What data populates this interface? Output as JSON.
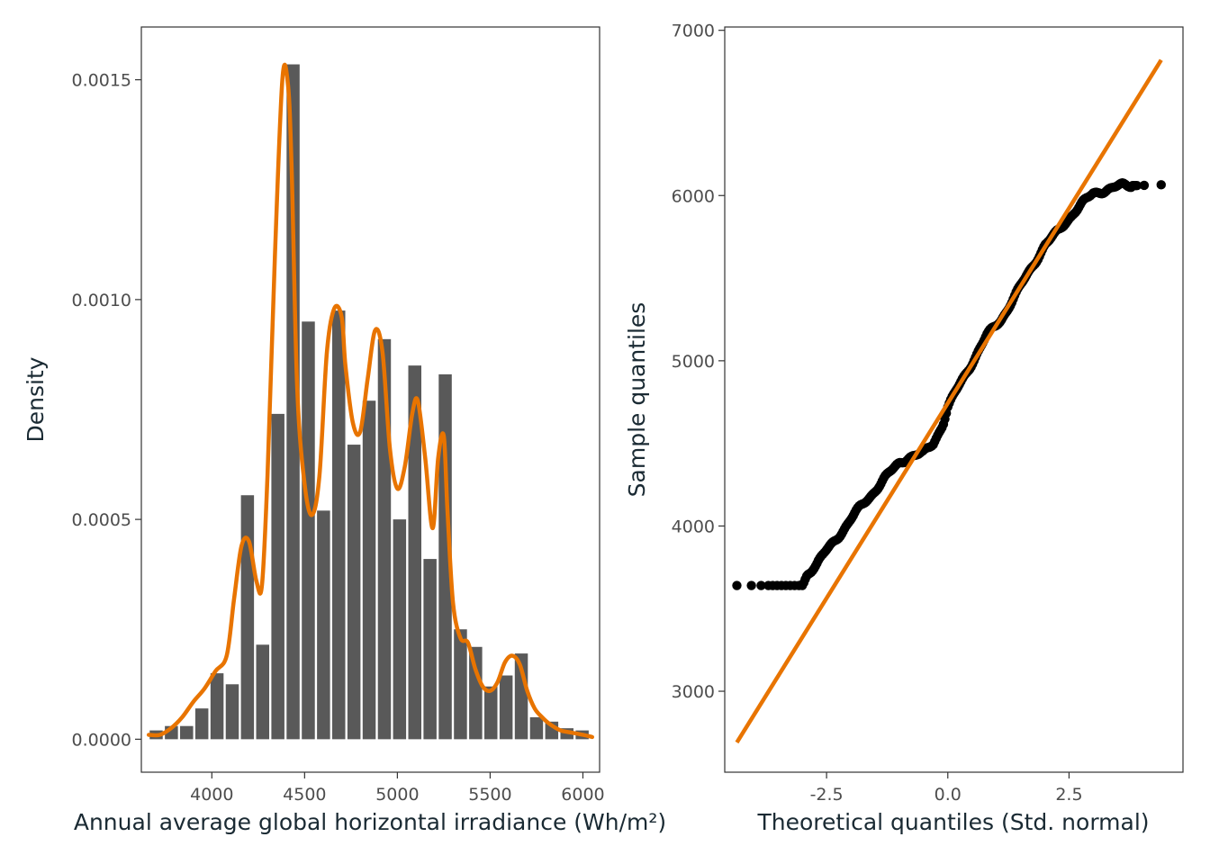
{
  "chart_data": [
    {
      "type": "bar",
      "subtype": "histogram-with-density",
      "title": "",
      "xlabel": "Annual average global horizontal irradiance (Wh/m²)",
      "ylabel": "Density",
      "xlim": [
        3620,
        6090
      ],
      "ylim": [
        -7.5e-05,
        0.00162
      ],
      "xticks": [
        4000,
        4500,
        5000,
        5500,
        6000
      ],
      "xtick_labels": [
        "4000",
        "4500",
        "5000",
        "5500",
        "6000"
      ],
      "yticks": [
        0,
        0.0005,
        0.001,
        0.0015
      ],
      "ytick_labels": [
        "0.0000",
        "0.0005",
        "0.0010",
        "0.0015"
      ],
      "grid": false,
      "bar_color": "#595959",
      "density_color": "#E87400",
      "bin_width": 82,
      "bins": [
        {
          "x0": 3659,
          "x1": 3741,
          "value": 2e-05
        },
        {
          "x0": 3741,
          "x1": 3823,
          "value": 3e-05
        },
        {
          "x0": 3823,
          "x1": 3905,
          "value": 3e-05
        },
        {
          "x0": 3905,
          "x1": 3987,
          "value": 7e-05
        },
        {
          "x0": 3987,
          "x1": 4069,
          "value": 0.00015
        },
        {
          "x0": 4069,
          "x1": 4151,
          "value": 0.000125
        },
        {
          "x0": 4151,
          "x1": 4233,
          "value": 0.000555
        },
        {
          "x0": 4233,
          "x1": 4315,
          "value": 0.000215
        },
        {
          "x0": 4315,
          "x1": 4397,
          "value": 0.00074
        },
        {
          "x0": 4397,
          "x1": 4479,
          "value": 0.001535
        },
        {
          "x0": 4479,
          "x1": 4561,
          "value": 0.00095
        },
        {
          "x0": 4561,
          "x1": 4643,
          "value": 0.00052
        },
        {
          "x0": 4643,
          "x1": 4725,
          "value": 0.000975
        },
        {
          "x0": 4725,
          "x1": 4807,
          "value": 0.00067
        },
        {
          "x0": 4807,
          "x1": 4889,
          "value": 0.00077
        },
        {
          "x0": 4889,
          "x1": 4971,
          "value": 0.00091
        },
        {
          "x0": 4971,
          "x1": 5053,
          "value": 0.0005
        },
        {
          "x0": 5053,
          "x1": 5135,
          "value": 0.00085
        },
        {
          "x0": 5135,
          "x1": 5217,
          "value": 0.00041
        },
        {
          "x0": 5217,
          "x1": 5299,
          "value": 0.00083
        },
        {
          "x0": 5299,
          "x1": 5381,
          "value": 0.00025
        },
        {
          "x0": 5381,
          "x1": 5463,
          "value": 0.00021
        },
        {
          "x0": 5463,
          "x1": 5545,
          "value": 0.00012
        },
        {
          "x0": 5545,
          "x1": 5627,
          "value": 0.000145
        },
        {
          "x0": 5627,
          "x1": 5709,
          "value": 0.000195
        },
        {
          "x0": 5709,
          "x1": 5791,
          "value": 5e-05
        },
        {
          "x0": 5791,
          "x1": 5873,
          "value": 4e-05
        },
        {
          "x0": 5873,
          "x1": 5955,
          "value": 2.5e-05
        },
        {
          "x0": 5955,
          "x1": 6037,
          "value": 2e-05
        }
      ],
      "density": {
        "x": [
          3660,
          3720,
          3780,
          3840,
          3900,
          3960,
          4020,
          4080,
          4120,
          4160,
          4200,
          4240,
          4270,
          4300,
          4340,
          4380,
          4410,
          4430,
          4460,
          4500,
          4540,
          4580,
          4620,
          4660,
          4700,
          4720,
          4760,
          4800,
          4840,
          4880,
          4920,
          4960,
          5000,
          5040,
          5080,
          5110,
          5150,
          5190,
          5220,
          5250,
          5270,
          5300,
          5340,
          5380,
          5420,
          5460,
          5500,
          5540,
          5580,
          5620,
          5660,
          5700,
          5740,
          5780,
          5820,
          5880,
          5940,
          6000,
          6050
        ],
        "y": [
          1e-05,
          1e-05,
          2.5e-05,
          5e-05,
          8.5e-05,
          0.000115,
          0.000155,
          0.00019,
          0.00032,
          0.00044,
          0.00045,
          0.00036,
          0.00035,
          0.0006,
          0.0011,
          0.0015,
          0.00149,
          0.0013,
          0.0008,
          0.00058,
          0.00051,
          0.0006,
          0.00088,
          0.00098,
          0.00096,
          0.00085,
          0.00072,
          0.0007,
          0.00082,
          0.00093,
          0.00088,
          0.00066,
          0.00057,
          0.00062,
          0.00074,
          0.00077,
          0.00064,
          0.00048,
          0.00064,
          0.00069,
          0.00052,
          0.00031,
          0.00023,
          0.00022,
          0.00016,
          0.00012,
          0.00011,
          0.00013,
          0.000175,
          0.00019,
          0.00017,
          0.00011,
          7e-05,
          5e-05,
          3.5e-05,
          2e-05,
          1.5e-05,
          1e-05,
          5e-06
        ]
      }
    },
    {
      "type": "scatter",
      "subtype": "qq-plot",
      "title": "",
      "xlabel": "Theoretical quantiles (Std. normal)",
      "ylabel": "Sample quantiles",
      "xlim": [
        -4.6,
        4.85
      ],
      "ylim": [
        2510,
        7020
      ],
      "xticks": [
        -2.5,
        0,
        2.5
      ],
      "xtick_labels": [
        "-2.5",
        "0.0",
        "2.5"
      ],
      "yticks": [
        3000,
        4000,
        5000,
        6000,
        7000
      ],
      "ytick_labels": [
        "3000",
        "4000",
        "5000",
        "6000",
        "7000"
      ],
      "grid": false,
      "point_color": "#000000",
      "line_color": "#E87400",
      "reference_line": {
        "x": [
          -4.35,
          4.4
        ],
        "y": [
          2690,
          6820
        ]
      },
      "quantile_curve": {
        "x": [
          -4.35,
          -4.0,
          -3.5,
          -3.2,
          -3.0,
          -2.9,
          -2.7,
          -2.5,
          -2.2,
          -1.9,
          -1.6,
          -1.3,
          -1.0,
          -0.8,
          -0.5,
          -0.3,
          -0.1,
          0.0,
          0.2,
          0.5,
          0.8,
          1.1,
          1.4,
          1.7,
          2.0,
          2.3,
          2.6,
          2.8,
          3.0,
          3.3,
          3.6,
          3.85,
          4.4
        ],
        "y": [
          3640,
          3640,
          3640,
          3640,
          3640,
          3710,
          3770,
          3850,
          3960,
          4080,
          4180,
          4290,
          4380,
          4420,
          4440,
          4500,
          4620,
          4720,
          4830,
          4990,
          5150,
          5250,
          5400,
          5550,
          5700,
          5790,
          5900,
          5960,
          6010,
          6040,
          6060,
          6060,
          6065
        ]
      }
    }
  ]
}
